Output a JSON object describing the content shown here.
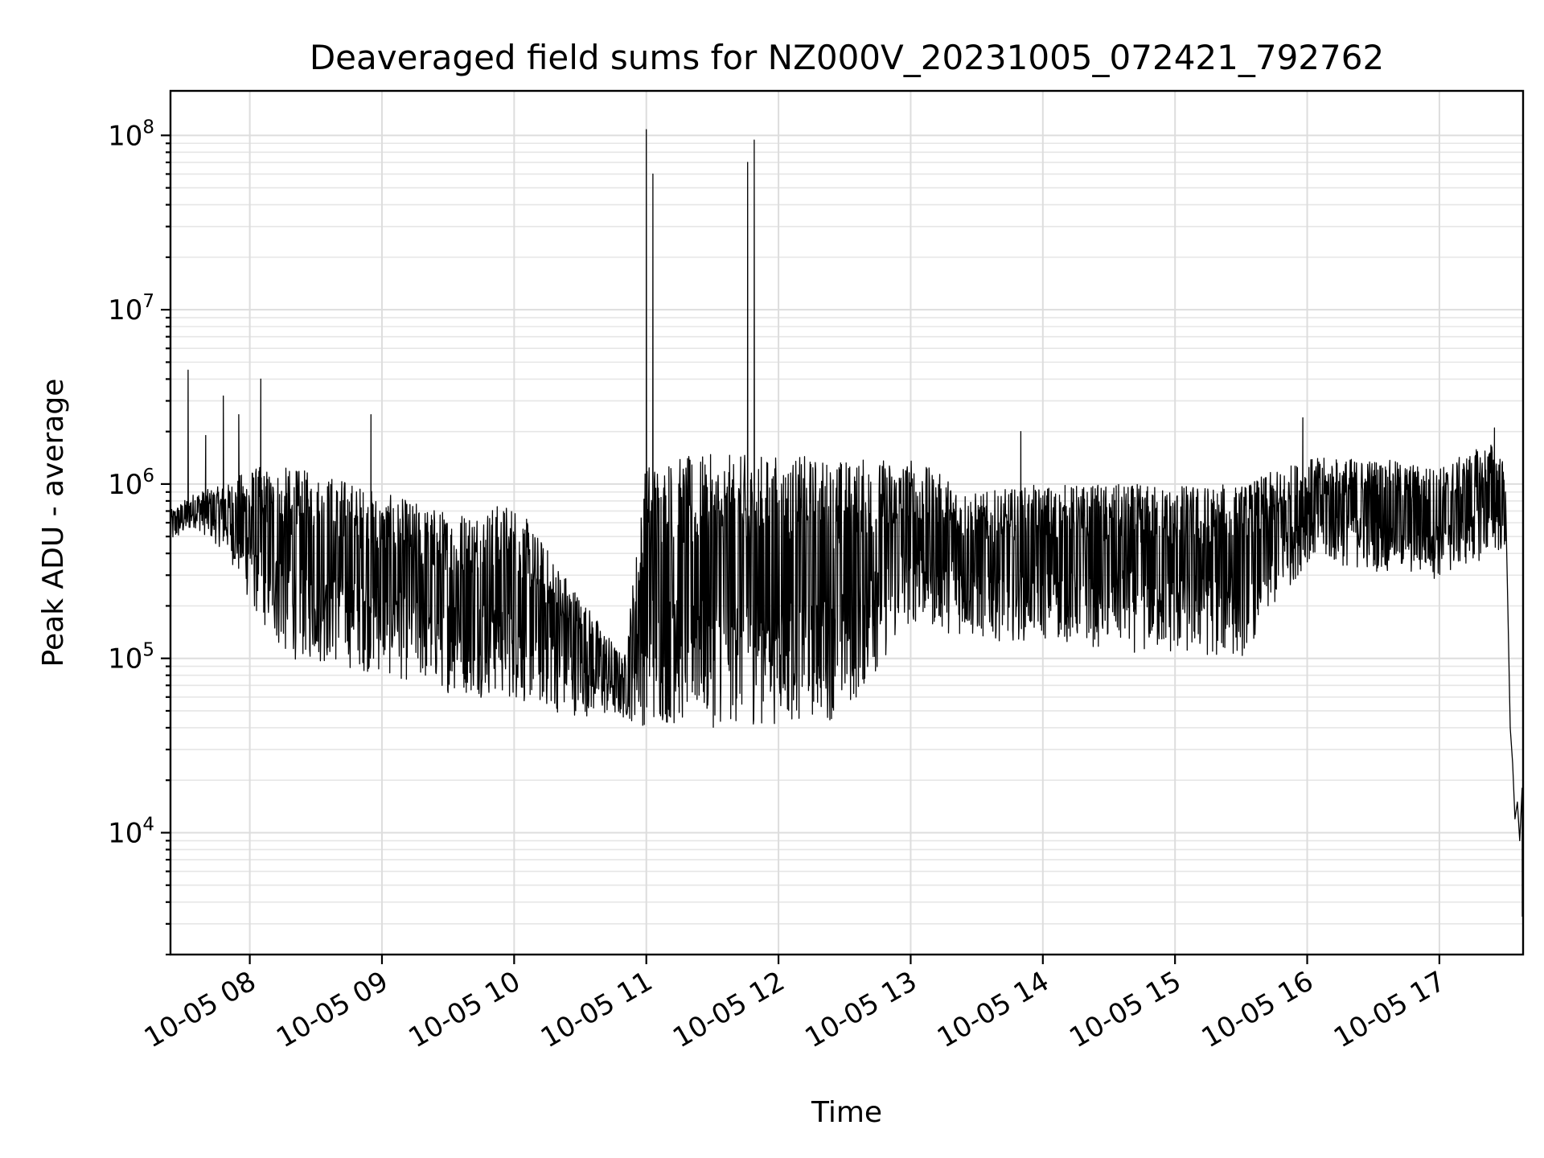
{
  "chart_data": {
    "type": "line",
    "title": "Deaveraged field sums for NZ000V_20231005_072421_792762",
    "xlabel": "Time",
    "ylabel": "Peak ADU - average",
    "yscale": "log",
    "ylim": [
      2000,
      180000000
    ],
    "xlim": [
      "2023-10-05 07:24",
      "2023-10-05 17:38"
    ],
    "grid": true,
    "legend": "none",
    "line_color": "#000000",
    "x_ticks": [
      {
        "t": "2023-10-05 08:00",
        "label": "10-05 08"
      },
      {
        "t": "2023-10-05 09:00",
        "label": "10-05 09"
      },
      {
        "t": "2023-10-05 10:00",
        "label": "10-05 10"
      },
      {
        "t": "2023-10-05 11:00",
        "label": "10-05 11"
      },
      {
        "t": "2023-10-05 12:00",
        "label": "10-05 12"
      },
      {
        "t": "2023-10-05 13:00",
        "label": "10-05 13"
      },
      {
        "t": "2023-10-05 14:00",
        "label": "10-05 14"
      },
      {
        "t": "2023-10-05 15:00",
        "label": "10-05 15"
      },
      {
        "t": "2023-10-05 16:00",
        "label": "10-05 16"
      },
      {
        "t": "2023-10-05 17:00",
        "label": "10-05 17"
      }
    ],
    "y_ticks": [
      {
        "value": 10000,
        "base": "10",
        "exp": "4"
      },
      {
        "value": 100000,
        "base": "10",
        "exp": "5"
      },
      {
        "value": 1000000,
        "base": "10",
        "exp": "6"
      },
      {
        "value": 10000000,
        "base": "10",
        "exp": "7"
      },
      {
        "value": 100000000,
        "base": "10",
        "exp": "8"
      }
    ],
    "envelope": {
      "description_units": "log10 of Peak ADU - average; time as 2023-10-05 HH:MM",
      "points": [
        {
          "t": "2023-10-05 07:24",
          "lo": 5.65,
          "hi": 5.85
        },
        {
          "t": "2023-10-05 07:35",
          "lo": 5.75,
          "hi": 5.95
        },
        {
          "t": "2023-10-05 07:50",
          "lo": 5.6,
          "hi": 6.0
        },
        {
          "t": "2023-10-05 08:00",
          "lo": 5.3,
          "hi": 6.1
        },
        {
          "t": "2023-10-05 08:15",
          "lo": 5.0,
          "hi": 6.1
        },
        {
          "t": "2023-10-05 08:40",
          "lo": 4.95,
          "hi": 6.05
        },
        {
          "t": "2023-10-05 09:00",
          "lo": 4.9,
          "hi": 5.95
        },
        {
          "t": "2023-10-05 09:30",
          "lo": 4.8,
          "hi": 5.85
        },
        {
          "t": "2023-10-05 10:00",
          "lo": 4.75,
          "hi": 5.9
        },
        {
          "t": "2023-10-05 10:20",
          "lo": 4.68,
          "hi": 5.55
        },
        {
          "t": "2023-10-05 10:50",
          "lo": 4.65,
          "hi": 5.0
        },
        {
          "t": "2023-10-05 11:00",
          "lo": 4.6,
          "hi": 6.15
        },
        {
          "t": "2023-10-05 11:30",
          "lo": 4.6,
          "hi": 6.17
        },
        {
          "t": "2023-10-05 12:00",
          "lo": 4.62,
          "hi": 6.17
        },
        {
          "t": "2023-10-05 12:30",
          "lo": 4.65,
          "hi": 6.15
        },
        {
          "t": "2023-10-05 13:00",
          "lo": 5.2,
          "hi": 6.15
        },
        {
          "t": "2023-10-05 13:30",
          "lo": 5.1,
          "hi": 5.95
        },
        {
          "t": "2023-10-05 14:00",
          "lo": 5.1,
          "hi": 6.0
        },
        {
          "t": "2023-10-05 14:30",
          "lo": 5.05,
          "hi": 6.0
        },
        {
          "t": "2023-10-05 15:00",
          "lo": 5.0,
          "hi": 6.0
        },
        {
          "t": "2023-10-05 15:30",
          "lo": 5.0,
          "hi": 6.0
        },
        {
          "t": "2023-10-05 16:00",
          "lo": 5.55,
          "hi": 6.15
        },
        {
          "t": "2023-10-05 16:30",
          "lo": 5.5,
          "hi": 6.15
        },
        {
          "t": "2023-10-05 17:00",
          "lo": 5.45,
          "hi": 6.1
        },
        {
          "t": "2023-10-05 17:25",
          "lo": 5.6,
          "hi": 6.25
        },
        {
          "t": "2023-10-05 17:30",
          "lo": 5.6,
          "hi": 6.1
        }
      ]
    },
    "peaks": [
      {
        "t": "2023-10-05 07:32",
        "value": 4500000
      },
      {
        "t": "2023-10-05 07:40",
        "value": 1900000
      },
      {
        "t": "2023-10-05 07:48",
        "value": 3200000
      },
      {
        "t": "2023-10-05 07:55",
        "value": 2500000
      },
      {
        "t": "2023-10-05 08:05",
        "value": 4000000
      },
      {
        "t": "2023-10-05 08:55",
        "value": 2500000
      },
      {
        "t": "2023-10-05 11:00",
        "value": 108000000
      },
      {
        "t": "2023-10-05 11:03",
        "value": 60000000
      },
      {
        "t": "2023-10-05 11:46",
        "value": 70000000
      },
      {
        "t": "2023-10-05 11:49",
        "value": 94000000
      },
      {
        "t": "2023-10-05 13:50",
        "value": 2000000
      },
      {
        "t": "2023-10-05 15:58",
        "value": 2400000
      },
      {
        "t": "2023-10-05 17:25",
        "value": 2100000
      }
    ],
    "tail": [
      {
        "t": "2023-10-05 17:30",
        "value": 900000
      },
      {
        "t": "2023-10-05 17:31",
        "value": 200000
      },
      {
        "t": "2023-10-05 17:32",
        "value": 40000
      },
      {
        "t": "2023-10-05 17:33",
        "value": 25000
      },
      {
        "t": "2023-10-05 17:34",
        "value": 12000
      },
      {
        "t": "2023-10-05 17:35",
        "value": 15000
      },
      {
        "t": "2023-10-05 17:36",
        "value": 9000
      },
      {
        "t": "2023-10-05 17:37",
        "value": 18000
      },
      {
        "t": "2023-10-05 17:37",
        "value": 3300
      }
    ]
  }
}
